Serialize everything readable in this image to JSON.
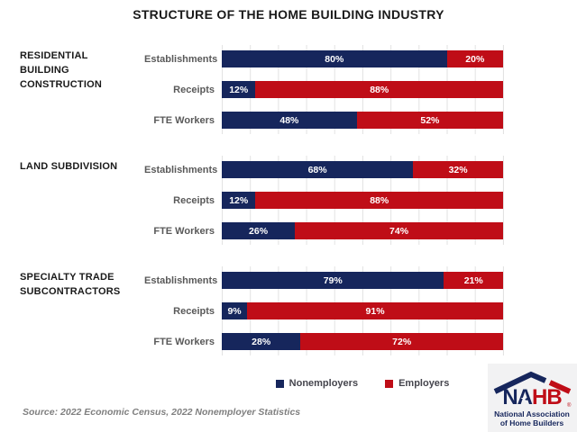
{
  "chart_data": {
    "type": "bar",
    "orientation": "horizontal",
    "stacked": true,
    "unit": "%",
    "xlim": [
      0,
      100
    ],
    "grid": true,
    "grid_step": 10,
    "title": "STRUCTURE OF THE HOME BUILDING INDUSTRY",
    "legend_position": "bottom",
    "legend": [
      {
        "label": "Nonemployers",
        "color": "#16265C"
      },
      {
        "label": "Employers",
        "color": "#BF0D17"
      }
    ],
    "groups": [
      {
        "label": "RESIDENTIAL BUILDING CONSTRUCTION",
        "rows": [
          {
            "category": "Establishments",
            "nonemployers": 80,
            "employers": 20
          },
          {
            "category": "Receipts",
            "nonemployers": 12,
            "employers": 88
          },
          {
            "category": "FTE Workers",
            "nonemployers": 48,
            "employers": 52
          }
        ]
      },
      {
        "label": "LAND SUBDIVISION",
        "rows": [
          {
            "category": "Establishments",
            "nonemployers": 68,
            "employers": 32
          },
          {
            "category": "Receipts",
            "nonemployers": 12,
            "employers": 88
          },
          {
            "category": "FTE Workers",
            "nonemployers": 26,
            "employers": 74
          }
        ]
      },
      {
        "label": "SPECIALTY TRADE SUBCONTRACTORS",
        "rows": [
          {
            "category": "Establishments",
            "nonemployers": 79,
            "employers": 21
          },
          {
            "category": "Receipts",
            "nonemployers": 9,
            "employers": 91
          },
          {
            "category": "FTE Workers",
            "nonemployers": 28,
            "employers": 72
          }
        ]
      }
    ]
  },
  "footer": {
    "source": "Source: 2022 Economic Census, 2022 Nonemployer Statistics"
  },
  "logo": {
    "na": "NA",
    "hb": "HB",
    "reg": "®",
    "star": "★",
    "line1": "National Association",
    "line2": "of Home Builders"
  },
  "colors": {
    "title": "#1A1A1A",
    "row_label": "#595959",
    "grid": "#E2E2E2",
    "source": "#7F7F7F",
    "logo_navy": "#16265C",
    "logo_red": "#BF0D17"
  }
}
